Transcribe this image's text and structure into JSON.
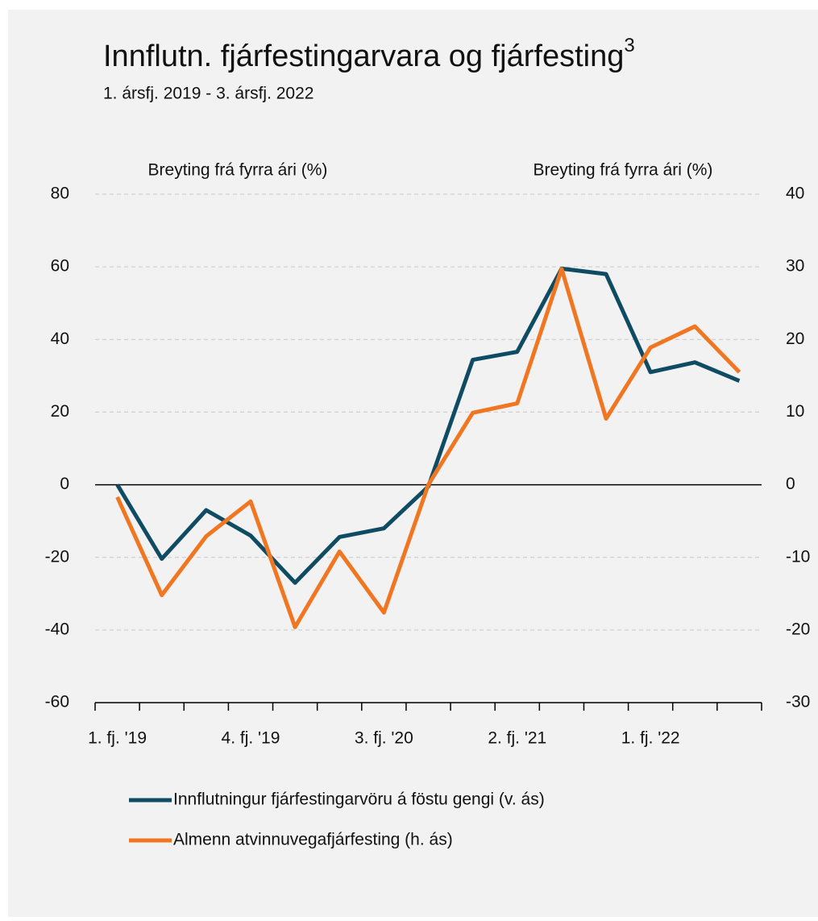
{
  "chart_data": {
    "type": "line",
    "title": "Innflutn. fjárfestingarvara og fjárfesting",
    "title_superscript": "3",
    "subtitle": "1. ársfj. 2019 - 3. ársfj. 2022",
    "y_axis_label": "Breyting frá fyrra ári (%)",
    "y2_axis_label": "Breyting frá fyrra ári (%)",
    "categories": [
      "1. fj. '19",
      null,
      null,
      "4. fj. '19",
      null,
      null,
      "3. fj. '20",
      null,
      null,
      "2. fj. '21",
      null,
      null,
      "1. fj. '22",
      null,
      null
    ],
    "series": [
      {
        "name": "Innflutningur fjárfestingarvöru á föstu gengi (v. ás)",
        "color": "#0f4c64",
        "axis": "y",
        "values": [
          0,
          -20.4,
          -7,
          -14,
          -27,
          -14.4,
          -12,
          -0.5,
          34.4,
          36.6,
          59.5,
          58,
          31,
          33.7,
          28.6
        ]
      },
      {
        "name": "Almenn atvinnuvegafjárfesting (h. ás)",
        "color": "#f07622",
        "axis": "y2",
        "values": [
          -1.7,
          -15.2,
          -7.1,
          -2.3,
          -19.6,
          -9.2,
          -17.6,
          0,
          9.9,
          11.2,
          29.7,
          9.1,
          18.9,
          21.8,
          15.5
        ]
      }
    ],
    "ylim": [
      -60,
      80
    ],
    "yticks": [
      -60,
      -40,
      -20,
      0,
      20,
      40,
      60,
      80
    ],
    "y2lim": [
      -30,
      40
    ],
    "y2ticks": [
      -30,
      -20,
      -10,
      0,
      10,
      20,
      30,
      40
    ],
    "grid": true,
    "legend": "bottom"
  }
}
